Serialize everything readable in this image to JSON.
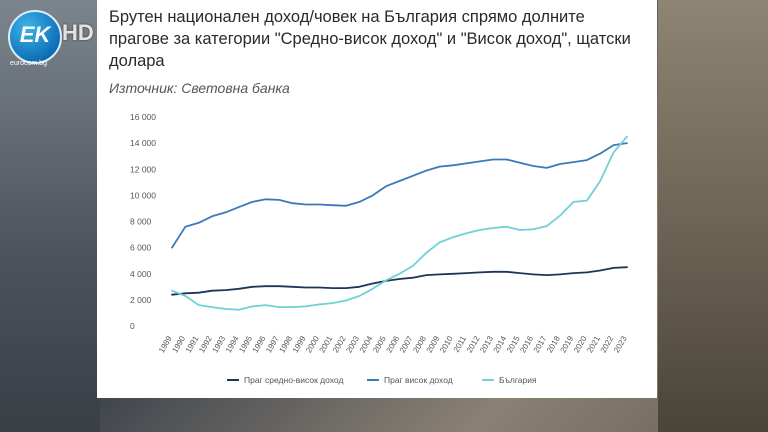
{
  "title": "Брутен национален доход/човек на България спрямо долните прагове за категории \"Средно-висок доход\" и \"Висок доход\", щатски долара",
  "source": "Източник: Световна банка",
  "logo": {
    "mark": "EK",
    "hd": "HD",
    "site": "eurocom.bg"
  },
  "colors": {
    "upper_middle": "#1d3557",
    "high": "#3a7ab8",
    "bulgaria": "#6fd0d6"
  },
  "chart_data": {
    "type": "line",
    "x": [
      "1989",
      "1990",
      "1991",
      "1992",
      "1993",
      "1994",
      "1995",
      "1996",
      "1997",
      "1998",
      "1999",
      "2000",
      "2001",
      "2002",
      "2003",
      "2004",
      "2005",
      "2006",
      "2007",
      "2008",
      "2009",
      "2010",
      "2011",
      "2012",
      "2013",
      "2014",
      "2015",
      "2016",
      "2017",
      "2018",
      "2019",
      "2020",
      "2021",
      "2022",
      "2023"
    ],
    "ylim": [
      0,
      16000
    ],
    "yticks": [
      "0",
      "2 000",
      "4 000",
      "6 000",
      "8 000",
      "10 000",
      "12 000",
      "14 000",
      "16 000"
    ],
    "ytick_values": [
      0,
      2000,
      4000,
      6000,
      8000,
      10000,
      12000,
      14000,
      16000
    ],
    "legend_position": "bottom",
    "series": [
      {
        "name": "Праг средно-висок доход",
        "color": "#1d3557",
        "values": [
          2400,
          2500,
          2550,
          2700,
          2750,
          2850,
          3000,
          3050,
          3050,
          3000,
          2950,
          2950,
          2900,
          2900,
          3000,
          3250,
          3450,
          3600,
          3700,
          3900,
          3950,
          4000,
          4050,
          4100,
          4150,
          4150,
          4050,
          3950,
          3900,
          3950,
          4050,
          4100,
          4250,
          4450,
          4500
        ]
      },
      {
        "name": "Праг висок доход",
        "color": "#3a7ab8",
        "values": [
          6000,
          7600,
          7900,
          8400,
          8700,
          9100,
          9500,
          9700,
          9650,
          9400,
          9300,
          9300,
          9250,
          9200,
          9500,
          10000,
          10700,
          11100,
          11500,
          11900,
          12200,
          12300,
          12450,
          12600,
          12750,
          12750,
          12500,
          12250,
          12100,
          12400,
          12550,
          12700,
          13200,
          13850,
          14000
        ]
      },
      {
        "name": "България",
        "color": "#6fd0d6",
        "values": [
          2700,
          2300,
          1600,
          1450,
          1300,
          1250,
          1500,
          1600,
          1450,
          1450,
          1500,
          1650,
          1750,
          1950,
          2300,
          2850,
          3500,
          4000,
          4600,
          5600,
          6400,
          6800,
          7100,
          7350,
          7500,
          7600,
          7350,
          7400,
          7650,
          8450,
          9500,
          9600,
          11100,
          13300,
          14500
        ]
      }
    ]
  }
}
